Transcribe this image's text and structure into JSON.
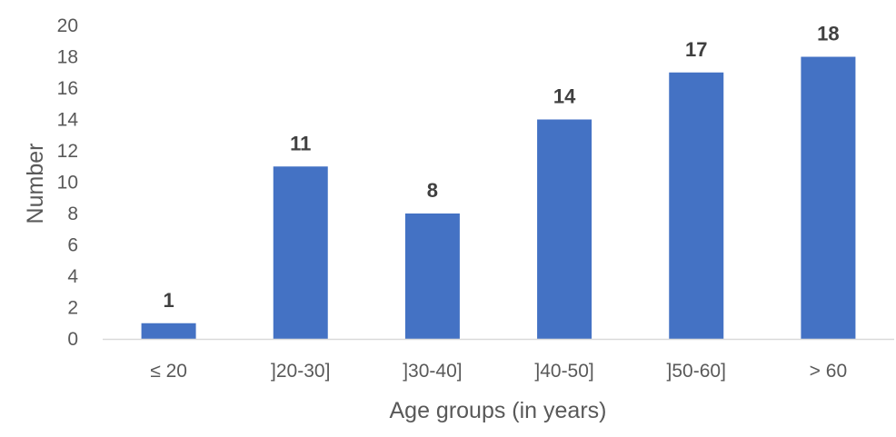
{
  "chart_data": {
    "type": "bar",
    "title": "",
    "xlabel": "Age groups (in years)",
    "ylabel": "Number",
    "categories": [
      "≤ 20",
      "]20-30]",
      "]30-40]",
      "]40-50]",
      "]50-60]",
      "> 60"
    ],
    "values": [
      1,
      11,
      8,
      14,
      17,
      18
    ],
    "ylim": [
      0,
      20
    ],
    "yticks": [
      0,
      2,
      4,
      6,
      8,
      10,
      12,
      14,
      16,
      18,
      20
    ],
    "data_labels": true,
    "grid": false,
    "legend": "none",
    "colors": {
      "bar": "#4472C4",
      "axis_line": "#D9D9D9",
      "text": "#595959",
      "data_label": "#404040"
    }
  }
}
